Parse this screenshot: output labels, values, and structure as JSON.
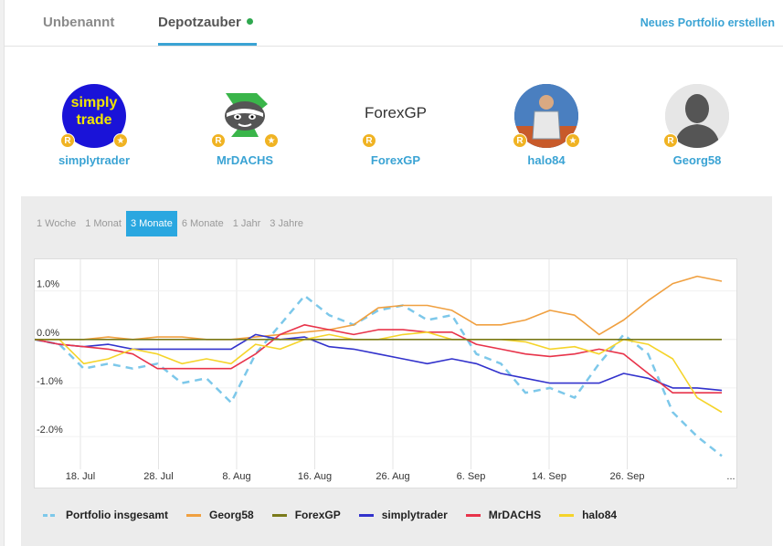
{
  "tabs": [
    {
      "label": "Unbenannt"
    },
    {
      "label": "Depotzauber"
    }
  ],
  "new_portfolio_label": "Neues Portfolio erstellen",
  "members": [
    {
      "name": "simplytrader",
      "avatar_text": "simply trade",
      "badges": [
        "R",
        "★"
      ]
    },
    {
      "name": "MrDACHS",
      "avatar_text": "",
      "badges": [
        "R",
        "★"
      ]
    },
    {
      "name": "ForexGP",
      "avatar_text": "ForexGP",
      "badges": [
        "R"
      ]
    },
    {
      "name": "halo84",
      "avatar_text": "",
      "badges": [
        "R",
        "★"
      ]
    },
    {
      "name": "Georg58",
      "avatar_text": "",
      "badges": [
        "R"
      ]
    }
  ],
  "ranges": [
    "1 Woche",
    "1 Monat",
    "3 Monate",
    "6 Monate",
    "1 Jahr",
    "3 Jahre"
  ],
  "selected_range": "3 Monate",
  "chart_data": {
    "type": "line",
    "x_ticks": [
      "18. Jul",
      "28. Jul",
      "8. Aug",
      "16. Aug",
      "26. Aug",
      "6. Sep",
      "14. Sep",
      "26. Sep",
      "..."
    ],
    "y_ticks": [
      "1.0%",
      "0.0%",
      "-1.0%",
      "-2.0%"
    ],
    "ylim": [
      -2.6,
      1.5
    ],
    "grid": true,
    "legend_position": "bottom",
    "series": [
      {
        "name": "Portfolio insgesamt",
        "color": "#7dc8ea",
        "dashed": true,
        "values": [
          0.0,
          -0.1,
          -0.6,
          -0.5,
          -0.6,
          -0.5,
          -0.9,
          -0.8,
          -1.3,
          -0.3,
          0.3,
          0.9,
          0.5,
          0.3,
          0.6,
          0.7,
          0.4,
          0.5,
          -0.3,
          -0.5,
          -1.1,
          -1.0,
          -1.2,
          -0.5,
          0.1,
          -0.3,
          -1.5,
          -2.0,
          -2.4
        ]
      },
      {
        "name": "Georg58",
        "color": "#f0a040",
        "values": [
          0.0,
          0.0,
          0.0,
          0.05,
          0.0,
          0.05,
          0.05,
          0.0,
          0.0,
          0.05,
          0.1,
          0.15,
          0.2,
          0.3,
          0.65,
          0.7,
          0.7,
          0.6,
          0.3,
          0.3,
          0.4,
          0.6,
          0.5,
          0.1,
          0.4,
          0.8,
          1.15,
          1.3,
          1.2
        ]
      },
      {
        "name": "ForexGP",
        "color": "#7a7a1a",
        "values": [
          0.0,
          0.0,
          0.0,
          0.0,
          0.0,
          0.0,
          0.0,
          0.0,
          0.0,
          0.0,
          0.0,
          0.0,
          0.0,
          0.0,
          0.0,
          0.0,
          0.0,
          0.0,
          0.0,
          0.0,
          0.0,
          0.0,
          0.0,
          0.0,
          0.0,
          0.0,
          0.0,
          0.0,
          0.0
        ]
      },
      {
        "name": "simplytrader",
        "color": "#3232cc",
        "values": [
          0.0,
          -0.1,
          -0.15,
          -0.1,
          -0.2,
          -0.2,
          -0.2,
          -0.2,
          -0.2,
          0.1,
          0.0,
          0.05,
          -0.15,
          -0.2,
          -0.3,
          -0.4,
          -0.5,
          -0.4,
          -0.5,
          -0.7,
          -0.8,
          -0.9,
          -0.9,
          -0.9,
          -0.7,
          -0.8,
          -1.0,
          -1.0,
          -1.05
        ]
      },
      {
        "name": "MrDACHS",
        "color": "#e8334a",
        "values": [
          0.0,
          -0.1,
          -0.15,
          -0.2,
          -0.3,
          -0.6,
          -0.6,
          -0.6,
          -0.6,
          -0.3,
          0.1,
          0.3,
          0.2,
          0.1,
          0.2,
          0.2,
          0.15,
          0.15,
          -0.1,
          -0.2,
          -0.3,
          -0.35,
          -0.3,
          -0.2,
          -0.3,
          -0.7,
          -1.1,
          -1.1,
          -1.1
        ]
      },
      {
        "name": "halo84",
        "color": "#f5d42a",
        "values": [
          0.0,
          0.0,
          -0.5,
          -0.4,
          -0.2,
          -0.3,
          -0.5,
          -0.4,
          -0.5,
          -0.1,
          -0.2,
          0.0,
          0.1,
          0.0,
          0.0,
          0.1,
          0.15,
          0.0,
          0.0,
          0.0,
          -0.05,
          -0.2,
          -0.15,
          -0.3,
          0.0,
          -0.1,
          -0.4,
          -1.2,
          -1.5
        ]
      }
    ]
  }
}
